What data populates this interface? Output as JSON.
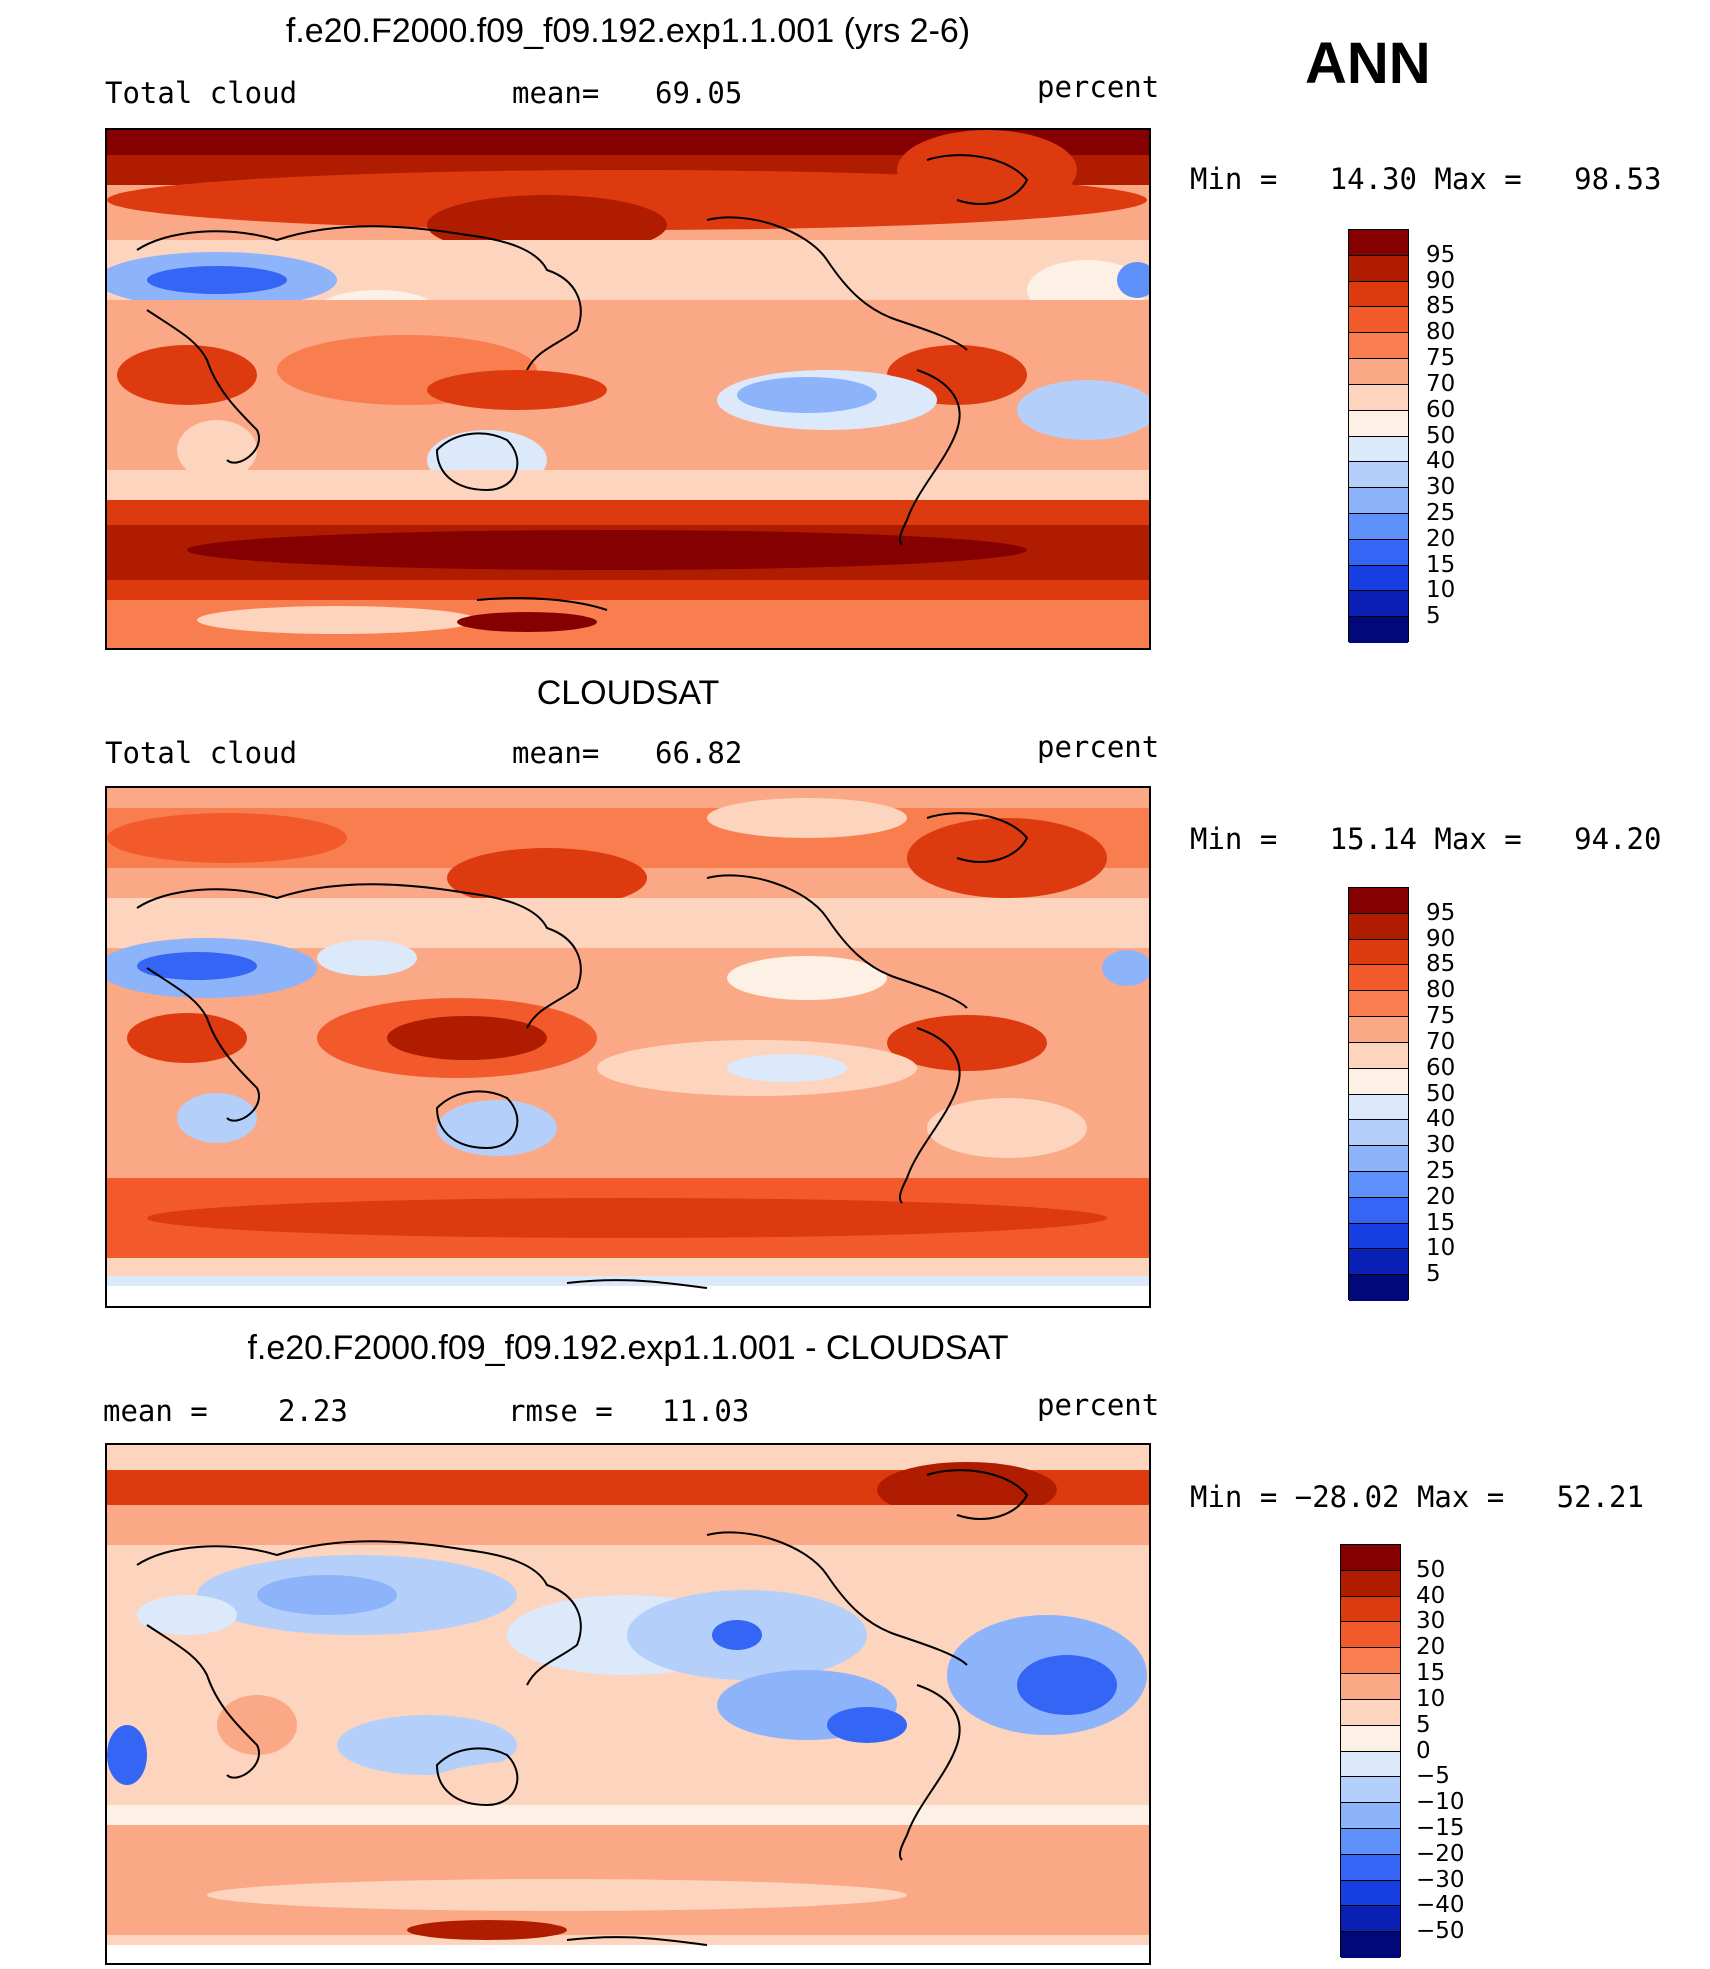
{
  "season": "ANN",
  "unit_label": "percent",
  "panels": [
    {
      "title": "f.e20.F2000.f09_f09.192.exp1.1.001 (yrs 2-6)",
      "left_label": "Total cloud",
      "center_label": "mean=",
      "center_value": "69.05",
      "minmax": "Min =   14.30 Max =   98.53",
      "levels": [
        "95",
        "90",
        "85",
        "80",
        "75",
        "70",
        "60",
        "50",
        "40",
        "30",
        "25",
        "20",
        "15",
        "10",
        "5"
      ],
      "colors": [
        "#850000",
        "#b01c00",
        "#dd3a0f",
        "#f25a2b",
        "#f97e4f",
        "#fba886",
        "#fdd4bd",
        "#fdf0e4",
        "#dce9fb",
        "#b5cffb",
        "#8db3fb",
        "#5f91fa",
        "#3465f5",
        "#173ee0",
        "#0a1fb4",
        "#00087a"
      ]
    },
    {
      "title": "CLOUDSAT",
      "left_label": "Total cloud",
      "center_label": "mean=",
      "center_value": "66.82",
      "minmax": "Min =   15.14 Max =   94.20",
      "levels": [
        "95",
        "90",
        "85",
        "80",
        "75",
        "70",
        "60",
        "50",
        "40",
        "30",
        "25",
        "20",
        "15",
        "10",
        "5"
      ],
      "colors": [
        "#850000",
        "#b01c00",
        "#dd3a0f",
        "#f25a2b",
        "#f97e4f",
        "#fba886",
        "#fdd4bd",
        "#fdf0e4",
        "#dce9fb",
        "#b5cffb",
        "#8db3fb",
        "#5f91fa",
        "#3465f5",
        "#173ee0",
        "#0a1fb4",
        "#00087a"
      ]
    },
    {
      "title": "f.e20.F2000.f09_f09.192.exp1.1.001 - CLOUDSAT",
      "left_label": "mean =",
      "left_value": "2.23",
      "center_label": "rmse =",
      "center_value": "11.03",
      "minmax": "Min = −28.02 Max =   52.21",
      "levels": [
        "50",
        "40",
        "30",
        "20",
        "15",
        "10",
        "5",
        "0",
        "−5",
        "−10",
        "−15",
        "−20",
        "−30",
        "−40",
        "−50"
      ],
      "colors": [
        "#850000",
        "#b01c00",
        "#dd3a0f",
        "#f25a2b",
        "#f97e4f",
        "#fba886",
        "#fdd4bd",
        "#fdf0e4",
        "#dce9fb",
        "#b5cffb",
        "#8db3fb",
        "#5f91fa",
        "#3465f5",
        "#173ee0",
        "#0a1fb4",
        "#00087a"
      ]
    }
  ]
}
